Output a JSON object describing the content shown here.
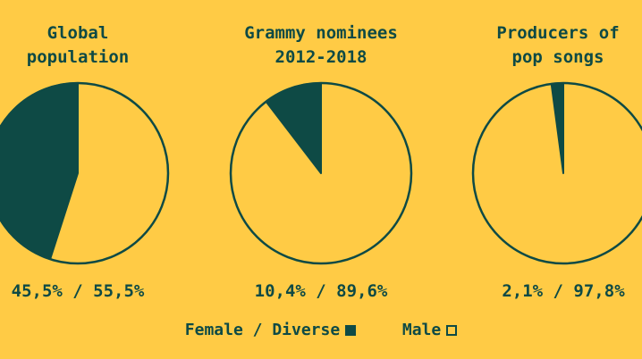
{
  "chart_data": {
    "type": "pie",
    "colors": {
      "female": "#0E4A45",
      "male": "#FFCB45",
      "background": "#FFCB45",
      "stroke": "#0E4A45"
    },
    "charts": [
      {
        "title_lines": [
          "Global",
          "population"
        ],
        "slices": [
          {
            "category": "Female / Diverse",
            "value": 45.5
          },
          {
            "category": "Male",
            "value": 55.5
          }
        ],
        "label": "45,5% / 55,5%"
      },
      {
        "title_lines": [
          "Grammy nominees",
          "2012-2018"
        ],
        "slices": [
          {
            "category": "Female / Diverse",
            "value": 10.4
          },
          {
            "category": "Male",
            "value": 89.6
          }
        ],
        "label": "10,4% / 89,6%"
      },
      {
        "title_lines": [
          "Producers of",
          "pop songs"
        ],
        "slices": [
          {
            "category": "Female / Diverse",
            "value": 2.1
          },
          {
            "category": "Male",
            "value": 97.8
          }
        ],
        "label": "2,1% / 97,8%"
      }
    ],
    "legend": {
      "female_label": "Female / Diverse",
      "male_label": "Male",
      "placement": "bottom-center"
    }
  }
}
